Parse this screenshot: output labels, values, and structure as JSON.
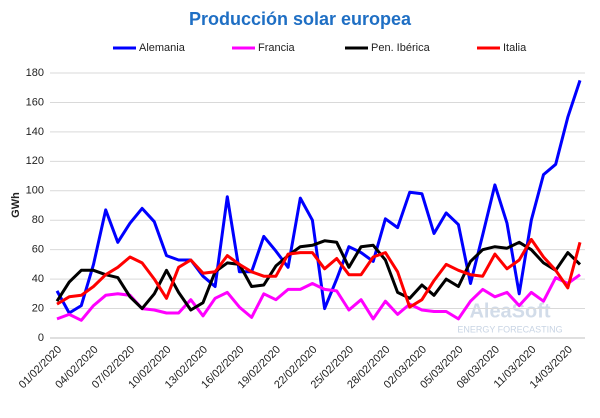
{
  "chart_data": {
    "type": "line",
    "title": "Producción solar europea",
    "ylabel": "GWh",
    "watermark": "AleaSoft",
    "watermark_sub": "ENERGY FORECASTING",
    "categories": [
      "01/02/2020",
      null,
      null,
      "04/02/2020",
      null,
      null,
      "07/02/2020",
      null,
      null,
      "10/02/2020",
      null,
      null,
      "13/02/2020",
      null,
      null,
      "16/02/2020",
      null,
      null,
      "19/02/2020",
      null,
      null,
      "22/02/2020",
      null,
      null,
      "25/02/2020",
      null,
      null,
      "28/02/2020",
      null,
      null,
      "02/03/2020",
      null,
      null,
      "05/03/2020",
      null,
      null,
      "08/03/2020",
      null,
      null,
      "11/03/2020",
      null,
      null,
      "14/03/2020",
      null
    ],
    "series": [
      {
        "name": "Alemania",
        "color": "#0000ff",
        "values": [
          32,
          17,
          22,
          50,
          87,
          65,
          78,
          88,
          79,
          56,
          53,
          53,
          42,
          35,
          96,
          45,
          45,
          69,
          59,
          48,
          95,
          80,
          20,
          40,
          62,
          58,
          52,
          81,
          75,
          99,
          98,
          71,
          85,
          77,
          37,
          70,
          104,
          78,
          30,
          80,
          111,
          118,
          150,
          175
        ]
      },
      {
        "name": "Francia",
        "color": "#ff00ff",
        "values": [
          13,
          16,
          12,
          22,
          29,
          30,
          29,
          20,
          19,
          17,
          17,
          26,
          15,
          27,
          31,
          21,
          14,
          30,
          26,
          33,
          33,
          37,
          33,
          32,
          19,
          26,
          13,
          25,
          16,
          23,
          19,
          18,
          18,
          13,
          25,
          33,
          28,
          31,
          22,
          31,
          25,
          41,
          37,
          43
        ]
      },
      {
        "name": "Pen. Ibérica",
        "color": "#000000",
        "values": [
          25,
          38,
          46,
          46,
          43,
          41,
          28,
          20,
          30,
          46,
          31,
          19,
          24,
          45,
          51,
          50,
          35,
          36,
          49,
          56,
          62,
          63,
          66,
          65,
          48,
          62,
          63,
          53,
          31,
          27,
          36,
          29,
          40,
          35,
          52,
          60,
          62,
          61,
          65,
          60,
          51,
          46,
          58,
          50
        ]
      },
      {
        "name": "Italia",
        "color": "#ff0000",
        "values": [
          23,
          28,
          29,
          35,
          43,
          48,
          55,
          51,
          40,
          27,
          48,
          53,
          44,
          45,
          56,
          50,
          45,
          42,
          42,
          57,
          58,
          58,
          47,
          54,
          43,
          43,
          55,
          58,
          45,
          21,
          26,
          39,
          50,
          46,
          43,
          42,
          57,
          47,
          53,
          67,
          55,
          46,
          34,
          65
        ]
      }
    ],
    "ylim": [
      0,
      180
    ],
    "yticks": [
      0,
      20,
      40,
      60,
      80,
      100,
      120,
      140,
      160,
      180
    ],
    "grid": true,
    "legend": "top"
  }
}
